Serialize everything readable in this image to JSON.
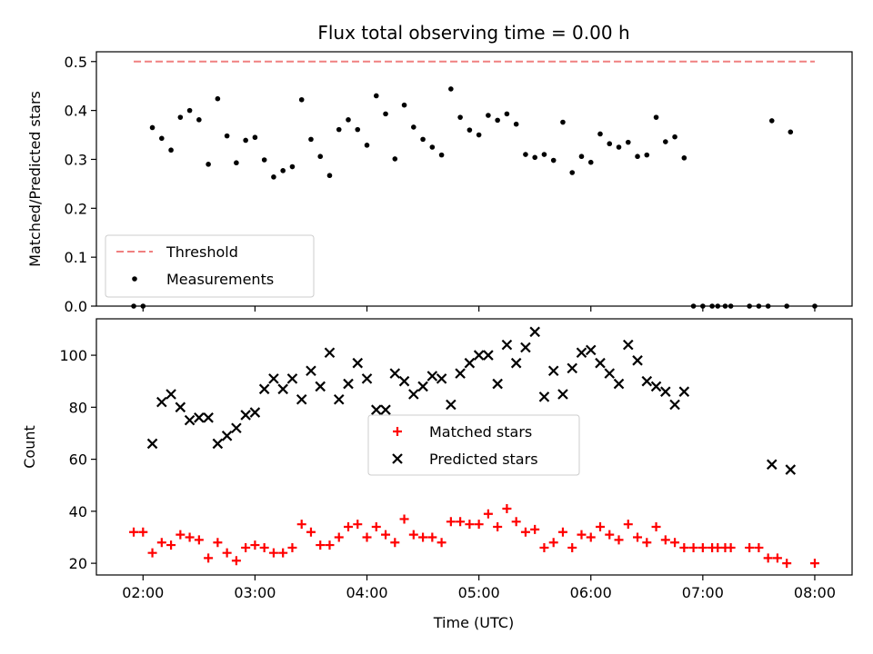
{
  "figure": {
    "title": "Flux total observing time = 0.00 h",
    "xlabel": "Time (UTC)",
    "x_tick_labels": [
      "02:00",
      "03:00",
      "04:00",
      "05:00",
      "06:00",
      "07:00",
      "08:00"
    ]
  },
  "chart_data": [
    {
      "type": "scatter",
      "ylabel": "Matched/Predicted stars",
      "xlim": [
        "01:35",
        "08:20"
      ],
      "ylim": [
        0,
        0.52
      ],
      "yticks": [
        0.0,
        0.1,
        0.2,
        0.3,
        0.4,
        0.5
      ],
      "ytick_labels": [
        "0.0",
        "0.1",
        "0.2",
        "0.3",
        "0.4",
        "0.5"
      ],
      "grid": false,
      "legend_position": "lower-left",
      "threshold": {
        "name": "Threshold",
        "value": 0.5,
        "from": "01:55",
        "to": "08:00",
        "color": "#f08080",
        "style": "dashed"
      },
      "series": [
        {
          "name": "Measurements",
          "color": "#000000",
          "marker": "dot",
          "points": [
            [
              "01:55",
              0.0
            ],
            [
              "02:00",
              0.0
            ],
            [
              "02:05",
              0.365
            ],
            [
              "02:10",
              0.343
            ],
            [
              "02:15",
              0.319
            ],
            [
              "02:20",
              0.386
            ],
            [
              "02:25",
              0.4
            ],
            [
              "02:30",
              0.381
            ],
            [
              "02:35",
              0.29
            ],
            [
              "02:40",
              0.424
            ],
            [
              "02:45",
              0.348
            ],
            [
              "02:50",
              0.293
            ],
            [
              "02:55",
              0.339
            ],
            [
              "03:00",
              0.345
            ],
            [
              "03:05",
              0.299
            ],
            [
              "03:10",
              0.264
            ],
            [
              "03:15",
              0.277
            ],
            [
              "03:20",
              0.285
            ],
            [
              "03:25",
              0.422
            ],
            [
              "03:30",
              0.341
            ],
            [
              "03:35",
              0.306
            ],
            [
              "03:40",
              0.267
            ],
            [
              "03:45",
              0.361
            ],
            [
              "03:50",
              0.381
            ],
            [
              "03:55",
              0.361
            ],
            [
              "04:00",
              0.329
            ],
            [
              "04:05",
              0.43
            ],
            [
              "04:10",
              0.393
            ],
            [
              "04:15",
              0.301
            ],
            [
              "04:20",
              0.411
            ],
            [
              "04:25",
              0.366
            ],
            [
              "04:30",
              0.341
            ],
            [
              "04:35",
              0.325
            ],
            [
              "04:40",
              0.309
            ],
            [
              "04:45",
              0.444
            ],
            [
              "04:50",
              0.386
            ],
            [
              "04:55",
              0.36
            ],
            [
              "05:00",
              0.35
            ],
            [
              "05:05",
              0.39
            ],
            [
              "05:10",
              0.38
            ],
            [
              "05:15",
              0.393
            ],
            [
              "05:20",
              0.372
            ],
            [
              "05:25",
              0.31
            ],
            [
              "05:30",
              0.304
            ],
            [
              "05:35",
              0.31
            ],
            [
              "05:40",
              0.298
            ],
            [
              "05:45",
              0.376
            ],
            [
              "05:50",
              0.273
            ],
            [
              "05:55",
              0.306
            ],
            [
              "06:00",
              0.294
            ],
            [
              "06:05",
              0.352
            ],
            [
              "06:10",
              0.332
            ],
            [
              "06:15",
              0.325
            ],
            [
              "06:20",
              0.335
            ],
            [
              "06:25",
              0.306
            ],
            [
              "06:30",
              0.309
            ],
            [
              "06:35",
              0.386
            ],
            [
              "06:40",
              0.336
            ],
            [
              "06:45",
              0.346
            ],
            [
              "06:50",
              0.303
            ],
            [
              "06:55",
              0.0
            ],
            [
              "07:00",
              0.0
            ],
            [
              "07:05",
              0.0
            ],
            [
              "07:08",
              0.0
            ],
            [
              "07:12",
              0.0
            ],
            [
              "07:15",
              0.0
            ],
            [
              "07:25",
              0.0
            ],
            [
              "07:30",
              0.0
            ],
            [
              "07:35",
              0.0
            ],
            [
              "07:37",
              0.379
            ],
            [
              "07:45",
              0.0
            ],
            [
              "07:47",
              0.356
            ],
            [
              "08:00",
              0.0
            ]
          ]
        }
      ]
    },
    {
      "type": "scatter",
      "ylabel": "Count",
      "xlabel": "Time (UTC)",
      "xlim": [
        "01:35",
        "08:20"
      ],
      "ylim": [
        15.5,
        114
      ],
      "yticks": [
        20,
        40,
        60,
        80,
        100
      ],
      "ytick_labels": [
        "20",
        "40",
        "60",
        "80",
        "100"
      ],
      "grid": false,
      "legend_position": "center",
      "series": [
        {
          "name": "Matched stars",
          "color": "#ff0000",
          "marker": "plus",
          "points": [
            [
              "01:55",
              32
            ],
            [
              "02:00",
              32
            ],
            [
              "02:05",
              24
            ],
            [
              "02:10",
              28
            ],
            [
              "02:15",
              27
            ],
            [
              "02:20",
              31
            ],
            [
              "02:25",
              30
            ],
            [
              "02:30",
              29
            ],
            [
              "02:35",
              22
            ],
            [
              "02:40",
              28
            ],
            [
              "02:45",
              24
            ],
            [
              "02:50",
              21
            ],
            [
              "02:55",
              26
            ],
            [
              "03:00",
              27
            ],
            [
              "03:05",
              26
            ],
            [
              "03:10",
              24
            ],
            [
              "03:15",
              24
            ],
            [
              "03:20",
              26
            ],
            [
              "03:25",
              35
            ],
            [
              "03:30",
              32
            ],
            [
              "03:35",
              27
            ],
            [
              "03:40",
              27
            ],
            [
              "03:45",
              30
            ],
            [
              "03:50",
              34
            ],
            [
              "03:55",
              35
            ],
            [
              "04:00",
              30
            ],
            [
              "04:05",
              34
            ],
            [
              "04:10",
              31
            ],
            [
              "04:15",
              28
            ],
            [
              "04:20",
              37
            ],
            [
              "04:25",
              31
            ],
            [
              "04:30",
              30
            ],
            [
              "04:35",
              30
            ],
            [
              "04:40",
              28
            ],
            [
              "04:45",
              36
            ],
            [
              "04:50",
              36
            ],
            [
              "04:55",
              35
            ],
            [
              "05:00",
              35
            ],
            [
              "05:05",
              39
            ],
            [
              "05:10",
              34
            ],
            [
              "05:15",
              41
            ],
            [
              "05:20",
              36
            ],
            [
              "05:25",
              32
            ],
            [
              "05:30",
              33
            ],
            [
              "05:35",
              26
            ],
            [
              "05:40",
              28
            ],
            [
              "05:45",
              32
            ],
            [
              "05:50",
              26
            ],
            [
              "05:55",
              31
            ],
            [
              "06:00",
              30
            ],
            [
              "06:05",
              34
            ],
            [
              "06:10",
              31
            ],
            [
              "06:15",
              29
            ],
            [
              "06:20",
              35
            ],
            [
              "06:25",
              30
            ],
            [
              "06:30",
              28
            ],
            [
              "06:35",
              34
            ],
            [
              "06:40",
              29
            ],
            [
              "06:45",
              28
            ],
            [
              "06:50",
              26
            ],
            [
              "06:55",
              26
            ],
            [
              "07:00",
              26
            ],
            [
              "07:05",
              26
            ],
            [
              "07:08",
              26
            ],
            [
              "07:12",
              26
            ],
            [
              "07:15",
              26
            ],
            [
              "07:25",
              26
            ],
            [
              "07:30",
              26
            ],
            [
              "07:35",
              22
            ],
            [
              "07:40",
              22
            ],
            [
              "07:45",
              20
            ],
            [
              "08:00",
              20
            ]
          ]
        },
        {
          "name": "Predicted stars",
          "color": "#000000",
          "marker": "x",
          "points": [
            [
              "02:05",
              66
            ],
            [
              "02:10",
              82
            ],
            [
              "02:15",
              85
            ],
            [
              "02:20",
              80
            ],
            [
              "02:25",
              75
            ],
            [
              "02:30",
              76
            ],
            [
              "02:35",
              76
            ],
            [
              "02:40",
              66
            ],
            [
              "02:45",
              69
            ],
            [
              "02:50",
              72
            ],
            [
              "02:55",
              77
            ],
            [
              "03:00",
              78
            ],
            [
              "03:05",
              87
            ],
            [
              "03:10",
              91
            ],
            [
              "03:15",
              87
            ],
            [
              "03:20",
              91
            ],
            [
              "03:25",
              83
            ],
            [
              "03:30",
              94
            ],
            [
              "03:35",
              88
            ],
            [
              "03:40",
              101
            ],
            [
              "03:45",
              83
            ],
            [
              "03:50",
              89
            ],
            [
              "03:55",
              97
            ],
            [
              "04:00",
              91
            ],
            [
              "04:05",
              79
            ],
            [
              "04:10",
              79
            ],
            [
              "04:15",
              93
            ],
            [
              "04:20",
              90
            ],
            [
              "04:25",
              85
            ],
            [
              "04:30",
              88
            ],
            [
              "04:35",
              92
            ],
            [
              "04:40",
              91
            ],
            [
              "04:45",
              81
            ],
            [
              "04:50",
              93
            ],
            [
              "04:55",
              97
            ],
            [
              "05:00",
              100
            ],
            [
              "05:05",
              100
            ],
            [
              "05:10",
              89
            ],
            [
              "05:15",
              104
            ],
            [
              "05:20",
              97
            ],
            [
              "05:25",
              103
            ],
            [
              "05:30",
              109
            ],
            [
              "05:35",
              84
            ],
            [
              "05:40",
              94
            ],
            [
              "05:45",
              85
            ],
            [
              "05:50",
              95
            ],
            [
              "05:55",
              101
            ],
            [
              "06:00",
              102
            ],
            [
              "06:05",
              97
            ],
            [
              "06:10",
              93
            ],
            [
              "06:15",
              89
            ],
            [
              "06:20",
              104
            ],
            [
              "06:25",
              98
            ],
            [
              "06:30",
              90
            ],
            [
              "06:35",
              88
            ],
            [
              "06:40",
              86
            ],
            [
              "06:45",
              81
            ],
            [
              "06:50",
              86
            ],
            [
              "07:37",
              58
            ],
            [
              "07:47",
              56
            ]
          ]
        }
      ]
    }
  ]
}
